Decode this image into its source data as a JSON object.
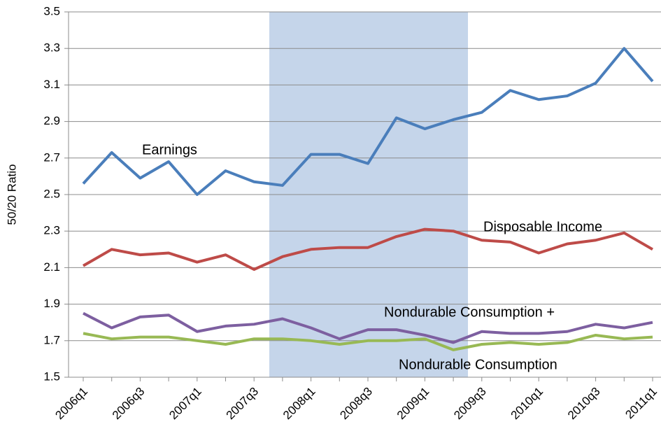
{
  "chart_data": {
    "type": "line",
    "y_label": "50/20 Ratio",
    "categories": [
      "2006q1",
      null,
      "2006q3",
      null,
      "2007q1",
      null,
      "2007q3",
      null,
      "2008q1",
      null,
      "2008q3",
      null,
      "2009q1",
      null,
      "2009q3",
      null,
      "2010q1",
      null,
      "2010q3",
      null,
      "2011q1"
    ],
    "series": [
      {
        "name": "Earnings",
        "color": "#4a7ebb",
        "values": [
          2.56,
          2.73,
          2.59,
          2.68,
          2.5,
          2.63,
          2.57,
          2.55,
          2.72,
          2.72,
          2.67,
          2.92,
          2.86,
          2.91,
          2.95,
          3.07,
          3.02,
          3.04,
          3.11,
          3.3,
          3.12
        ]
      },
      {
        "name": "Disposable Income",
        "color": "#be4b48",
        "values": [
          2.11,
          2.2,
          2.17,
          2.18,
          2.13,
          2.17,
          2.09,
          2.16,
          2.2,
          2.21,
          2.21,
          2.27,
          2.31,
          2.3,
          2.25,
          2.24,
          2.18,
          2.23,
          2.25,
          2.29,
          2.2
        ]
      },
      {
        "name": "Nondurable Consumption +",
        "color": "#7d5fa0",
        "values": [
          1.85,
          1.77,
          1.83,
          1.84,
          1.75,
          1.78,
          1.79,
          1.82,
          1.77,
          1.71,
          1.76,
          1.76,
          1.73,
          1.69,
          1.75,
          1.74,
          1.74,
          1.75,
          1.79,
          1.77,
          1.8
        ]
      },
      {
        "name": "Nondurable Consumption",
        "color": "#98b954",
        "values": [
          1.74,
          1.71,
          1.72,
          1.72,
          1.7,
          1.68,
          1.71,
          1.71,
          1.7,
          1.68,
          1.7,
          1.7,
          1.71,
          1.65,
          1.68,
          1.69,
          1.68,
          1.69,
          1.73,
          1.71,
          1.72
        ]
      }
    ],
    "ylim": [
      1.5,
      3.5
    ],
    "yticks": [
      1.5,
      1.7,
      1.9,
      2.1,
      2.3,
      2.5,
      2.7,
      2.9,
      3.1,
      3.3,
      3.5
    ],
    "grid": true
  }
}
